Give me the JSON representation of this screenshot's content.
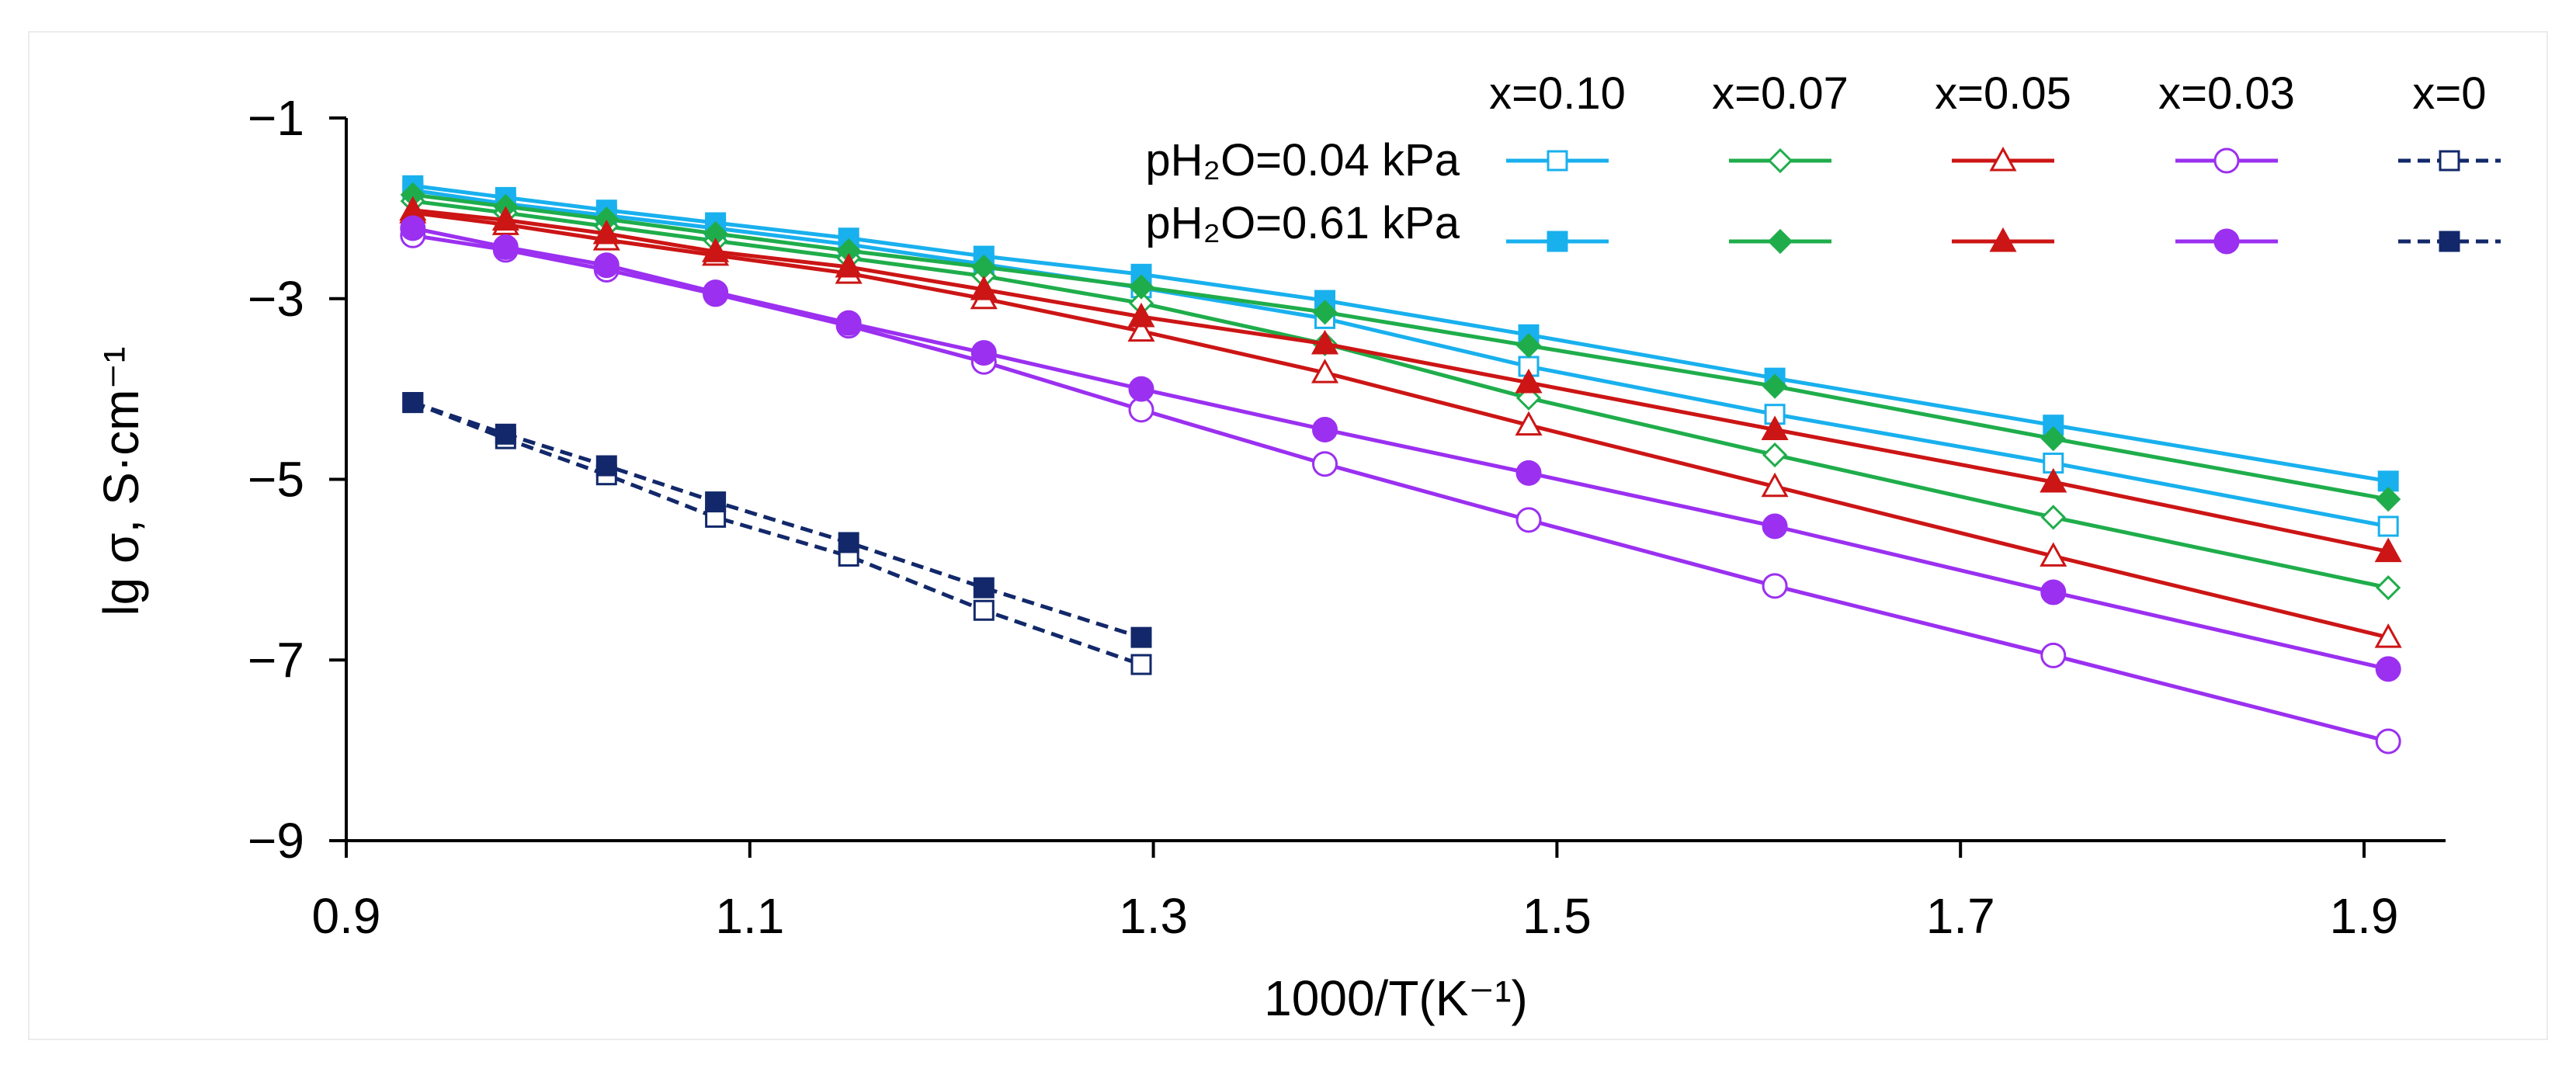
{
  "chart_data": {
    "type": "line",
    "title": "",
    "xlabel": "1000/T(K⁻¹)",
    "ylabel": "lg σ, S·cm⁻¹",
    "xlim": [
      0.9,
      1.95
    ],
    "ylim": [
      -9,
      -1
    ],
    "xticks": [
      0.9,
      1.1,
      1.3,
      1.5,
      1.7,
      1.9
    ],
    "xtick_labels": [
      "0.9",
      "1.1",
      "1.3",
      "1.5",
      "1.7",
      "1.9"
    ],
    "yticks": [
      -1,
      -3,
      -5,
      -7,
      -9
    ],
    "ytick_labels": [
      "−1",
      "−3",
      "−5",
      "−7",
      "−9"
    ],
    "grid": false,
    "legend": {
      "placement": "top-right",
      "columns": [
        "x=0.10",
        "x=0.07",
        "x=0.05",
        "x=0.03",
        "x=0"
      ],
      "rows": [
        "pH₂O=0.04 kPa",
        "pH₂O=0.61 kPa"
      ]
    },
    "series": [
      {
        "name": "x=0.10, pH2O=0.04 kPa",
        "color": "#19b0ee",
        "marker": "square",
        "filled": false,
        "dashed": false,
        "x": [
          0.933,
          0.979,
          1.029,
          1.083,
          1.149,
          1.216,
          1.294,
          1.385,
          1.486,
          1.608,
          1.746,
          1.912
        ],
        "y": [
          -1.8,
          -1.95,
          -2.08,
          -2.22,
          -2.4,
          -2.62,
          -2.88,
          -3.22,
          -3.75,
          -4.28,
          -4.82,
          -5.52
        ]
      },
      {
        "name": "x=0.10, pH2O=0.61 kPa",
        "color": "#19b0ee",
        "marker": "square",
        "filled": true,
        "dashed": false,
        "x": [
          0.933,
          0.979,
          1.029,
          1.083,
          1.149,
          1.216,
          1.294,
          1.385,
          1.486,
          1.608,
          1.746,
          1.912
        ],
        "y": [
          -1.75,
          -1.88,
          -2.02,
          -2.16,
          -2.33,
          -2.53,
          -2.73,
          -3.02,
          -3.4,
          -3.88,
          -4.4,
          -5.02
        ]
      },
      {
        "name": "x=0.07, pH2O=0.04 kPa",
        "color": "#1fad4b",
        "marker": "diamond",
        "filled": false,
        "dashed": false,
        "x": [
          0.933,
          0.979,
          1.029,
          1.083,
          1.149,
          1.216,
          1.294,
          1.385,
          1.486,
          1.608,
          1.746,
          1.912
        ],
        "y": [
          -1.92,
          -2.05,
          -2.2,
          -2.36,
          -2.55,
          -2.75,
          -3.05,
          -3.5,
          -4.1,
          -4.73,
          -5.42,
          -6.2
        ]
      },
      {
        "name": "x=0.07, pH2O=0.61 kPa",
        "color": "#1fad4b",
        "marker": "diamond",
        "filled": true,
        "dashed": false,
        "x": [
          0.933,
          0.979,
          1.029,
          1.083,
          1.149,
          1.216,
          1.294,
          1.385,
          1.486,
          1.608,
          1.746,
          1.912
        ],
        "y": [
          -1.85,
          -1.98,
          -2.12,
          -2.28,
          -2.47,
          -2.65,
          -2.87,
          -3.15,
          -3.52,
          -3.97,
          -4.55,
          -5.22
        ]
      },
      {
        "name": "x=0.05, pH2O=0.04 kPa",
        "color": "#cc1515",
        "marker": "triangle",
        "filled": false,
        "dashed": false,
        "x": [
          0.933,
          0.979,
          1.029,
          1.083,
          1.149,
          1.216,
          1.294,
          1.385,
          1.486,
          1.608,
          1.746,
          1.912
        ],
        "y": [
          -2.05,
          -2.18,
          -2.35,
          -2.52,
          -2.72,
          -3.0,
          -3.36,
          -3.82,
          -4.4,
          -5.08,
          -5.85,
          -6.75
        ]
      },
      {
        "name": "x=0.05, pH2O=0.61 kPa",
        "color": "#cc1515",
        "marker": "triangle",
        "filled": true,
        "dashed": false,
        "x": [
          0.933,
          0.979,
          1.029,
          1.083,
          1.149,
          1.216,
          1.294,
          1.385,
          1.486,
          1.608,
          1.746,
          1.912
        ],
        "y": [
          -2.02,
          -2.13,
          -2.28,
          -2.48,
          -2.65,
          -2.9,
          -3.2,
          -3.5,
          -3.93,
          -4.45,
          -5.03,
          -5.8
        ]
      },
      {
        "name": "x=0.03, pH2O=0.04 kPa",
        "color": "#9b30f0",
        "marker": "circle",
        "filled": false,
        "dashed": false,
        "x": [
          0.933,
          0.979,
          1.029,
          1.083,
          1.149,
          1.216,
          1.294,
          1.385,
          1.486,
          1.608,
          1.746,
          1.912
        ],
        "y": [
          -2.3,
          -2.46,
          -2.68,
          -2.95,
          -3.3,
          -3.7,
          -4.23,
          -4.83,
          -5.45,
          -6.18,
          -6.95,
          -7.9
        ]
      },
      {
        "name": "x=0.03, pH2O=0.61 kPa",
        "color": "#9b30f0",
        "marker": "circle",
        "filled": true,
        "dashed": false,
        "x": [
          0.933,
          0.979,
          1.029,
          1.083,
          1.149,
          1.216,
          1.294,
          1.385,
          1.486,
          1.608,
          1.746,
          1.912
        ],
        "y": [
          -2.22,
          -2.43,
          -2.63,
          -2.93,
          -3.27,
          -3.6,
          -4.0,
          -4.45,
          -4.93,
          -5.52,
          -6.25,
          -7.1
        ]
      },
      {
        "name": "x=0, pH2O=0.04 kPa",
        "color": "#12286a",
        "marker": "square",
        "filled": false,
        "dashed": true,
        "x": [
          0.933,
          0.979,
          1.029,
          1.083,
          1.149,
          1.216,
          1.294
        ],
        "y": [
          -4.15,
          -4.55,
          -4.95,
          -5.42,
          -5.85,
          -6.45,
          -7.05
        ]
      },
      {
        "name": "x=0, pH2O=0.61 kPa",
        "color": "#12286a",
        "marker": "square",
        "filled": true,
        "dashed": true,
        "x": [
          0.933,
          0.979,
          1.029,
          1.083,
          1.149,
          1.216,
          1.294
        ],
        "y": [
          -4.15,
          -4.5,
          -4.85,
          -5.25,
          -5.7,
          -6.2,
          -6.75
        ]
      }
    ]
  }
}
